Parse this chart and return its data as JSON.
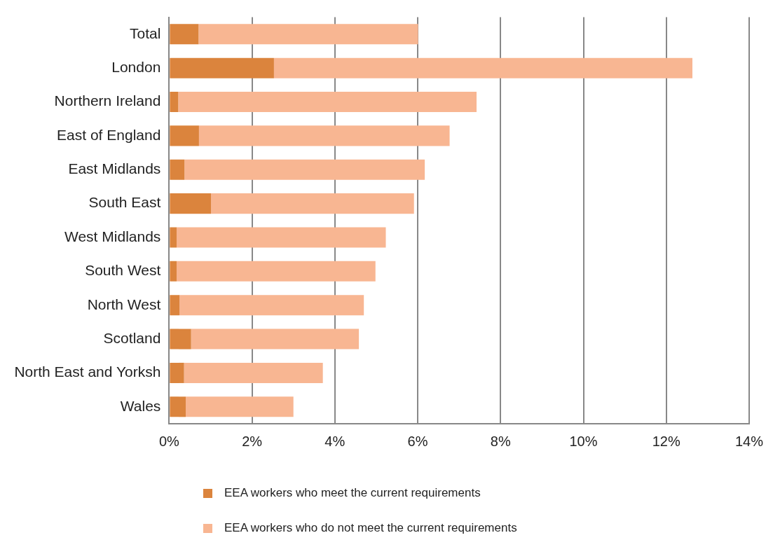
{
  "chart_data": {
    "type": "bar",
    "orientation": "horizontal",
    "stacked": true,
    "categories": [
      "Total",
      "London",
      "Northern Ireland",
      "East of England",
      "East Midlands",
      "South East",
      "West Midlands",
      "South West",
      "North West",
      "Scotland",
      "North East and Yorksh",
      "Wales"
    ],
    "series": [
      {
        "name": "EEA workers who meet the current requirements",
        "color": "#db843d",
        "values": [
          0.71,
          2.53,
          0.22,
          0.72,
          0.37,
          1.01,
          0.18,
          0.18,
          0.25,
          0.53,
          0.36,
          0.4
        ]
      },
      {
        "name": "EEA workers who do not meet the current requirements",
        "color": "#f8b692",
        "values": [
          5.3,
          10.1,
          7.2,
          6.05,
          5.8,
          4.9,
          5.05,
          4.8,
          4.45,
          4.05,
          3.35,
          2.6
        ]
      }
    ],
    "xlim": [
      0,
      14
    ],
    "xticks": [
      {
        "value": 0,
        "label": "0%"
      },
      {
        "value": 2,
        "label": "2%"
      },
      {
        "value": 4,
        "label": "4%"
      },
      {
        "value": 6,
        "label": "6%"
      },
      {
        "value": 8,
        "label": "8%"
      },
      {
        "value": 10,
        "label": "10%"
      },
      {
        "value": 12,
        "label": "12%"
      },
      {
        "value": 14,
        "label": "14%"
      }
    ],
    "grid": "x",
    "legend": "bottom"
  }
}
